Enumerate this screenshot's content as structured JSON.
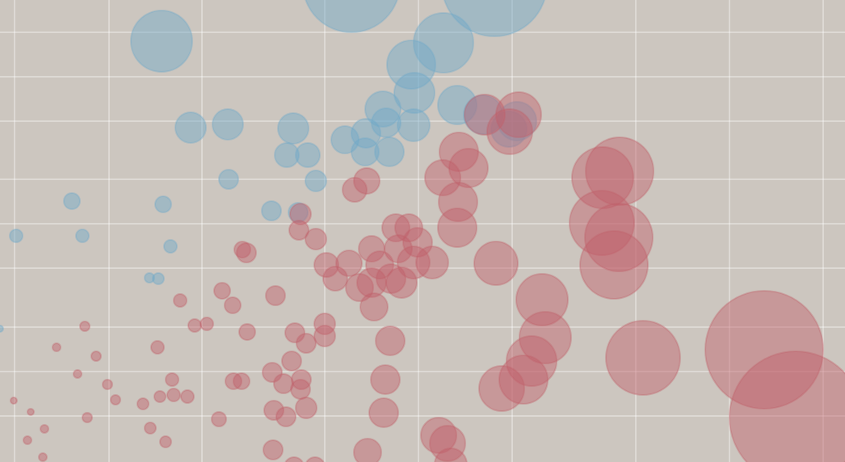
{
  "chart_data": {
    "type": "bubble",
    "xlim": [
      0,
      1046
    ],
    "ylim": [
      0,
      572
    ],
    "xticks": [
      18,
      135,
      250,
      402,
      518,
      634,
      787,
      903,
      1019
    ],
    "yticks": [
      57,
      112,
      167,
      240,
      295,
      350,
      422,
      477,
      532
    ],
    "grid": true,
    "tick_labels": false,
    "background": "#ccc6bf",
    "series": [
      {
        "color": "#6fa8c8",
        "x": [
          200,
          435,
          612,
          549,
          509,
          513,
          236,
          282,
          363,
          355,
          381,
          474,
          478,
          512,
          427,
          453,
          452,
          482,
          391,
          283,
          89,
          202,
          20,
          102,
          211,
          336,
          369,
          566,
          598,
          640,
          630,
          0,
          185,
          196
        ],
        "values": [
          521,
          592,
          592,
          519,
          492,
          457,
          414,
          418,
          413,
          380,
          380,
          437,
          420,
          417,
          399,
          407,
          384,
          384,
          348,
          350,
          323,
          319,
          280,
          280,
          267,
          311,
          309,
          442,
          430,
          422,
          412,
          165,
          228,
          227
        ],
        "sizes": [
          38,
          60,
          65,
          37,
          30,
          25,
          19,
          19,
          19,
          15,
          15,
          22,
          18,
          20,
          17,
          18,
          17,
          18,
          13,
          12,
          10,
          10,
          8,
          8,
          8,
          12,
          12,
          24,
          24,
          24,
          22,
          4,
          6,
          7
        ]
      },
      {
        "color": "#c0606a",
        "x": [
          642,
          600,
          631,
          568,
          580,
          548,
          567,
          566,
          439,
          454,
          746,
          767,
          745,
          766,
          760,
          614,
          671,
          675,
          658,
          648,
          621,
          796,
          946,
          985,
          543,
          554,
          558,
          483,
          477,
          475,
          455,
          460,
          490,
          506,
          493,
          517,
          535,
          512,
          470,
          432,
          404,
          415,
          445,
          460,
          484,
          497,
          463,
          305,
          300,
          370,
          391,
          341,
          288,
          275,
          223,
          241,
          256,
          306,
          365,
          379,
          402,
          402,
          361,
          337,
          351,
          373,
          372,
          379,
          339,
          354,
          289,
          299,
          213,
          198,
          215,
          232,
          177,
          143,
          133,
          119,
          105,
          96,
          70,
          17,
          38,
          55,
          34,
          53,
          108,
          186,
          205,
          195,
          271,
          338,
          364,
          390,
          372
        ],
        "values": [
          430,
          430,
          409,
          384,
          364,
          352,
          322,
          290,
          337,
          348,
          352,
          360,
          296,
          278,
          244,
          246,
          201,
          154,
          125,
          102,
          91,
          129,
          139,
          55,
          33,
          23,
          -3,
          150,
          102,
          61,
          12,
          264,
          290,
          290,
          264,
          272,
          247,
          247,
          244,
          246,
          244,
          227,
          216,
          222,
          227,
          222,
          192,
          259,
          263,
          287,
          276,
          206,
          194,
          212,
          200,
          169,
          171,
          161,
          160,
          147,
          171,
          156,
          125,
          111,
          97,
          102,
          90,
          67,
          64,
          56,
          100,
          100,
          102,
          81,
          83,
          81,
          72,
          77,
          96,
          131,
          168,
          109,
          142,
          76,
          62,
          41,
          27,
          6,
          55,
          42,
          25,
          142,
          53,
          15,
          -6,
          -6,
          307
        ],
        "sizes": [
          28,
          25,
          28,
          24,
          24,
          22,
          24,
          24,
          15,
          16,
          38,
          42,
          40,
          42,
          42,
          27,
          32,
          32,
          31,
          30,
          28,
          46,
          73,
          82,
          22,
          22,
          20,
          18,
          18,
          18,
          17,
          16,
          17,
          17,
          17,
          18,
          20,
          20,
          17,
          16,
          15,
          15,
          17,
          18,
          18,
          19,
          17,
          12,
          10,
          12,
          13,
          12,
          10,
          10,
          8,
          8,
          8,
          10,
          12,
          12,
          13,
          13,
          12,
          12,
          12,
          12,
          12,
          13,
          12,
          12,
          10,
          10,
          8,
          7,
          8,
          8,
          7,
          6,
          6,
          6,
          6,
          5,
          5,
          4,
          4,
          5,
          5,
          5,
          6,
          7,
          7,
          8,
          9,
          12,
          12,
          12,
          13
        ]
      }
    ]
  }
}
